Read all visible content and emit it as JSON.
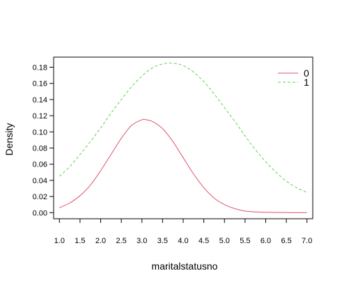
{
  "chart_data": {
    "type": "line",
    "title": "",
    "xlabel": "maritalstatusno",
    "ylabel": "Density",
    "xlim": [
      0.86,
      7.14
    ],
    "ylim": [
      -0.0075,
      0.1925
    ],
    "x_ticks": [
      "1.0",
      "1.5",
      "2.0",
      "2.5",
      "3.0",
      "3.5",
      "4.0",
      "4.5",
      "5.0",
      "5.5",
      "6.0",
      "6.5",
      "7.0"
    ],
    "y_ticks": [
      "0.00",
      "0.02",
      "0.04",
      "0.06",
      "0.08",
      "0.10",
      "0.12",
      "0.14",
      "0.16",
      "0.18"
    ],
    "grid": false,
    "legend_position": "top-right",
    "series": [
      {
        "name": "0",
        "color": "#DF536B",
        "dash": "solid",
        "x": [
          1.0,
          1.25,
          1.5,
          1.75,
          2.0,
          2.25,
          2.5,
          2.75,
          3.0,
          3.1,
          3.25,
          3.5,
          3.75,
          4.0,
          4.25,
          4.5,
          4.75,
          5.0,
          5.25,
          5.5,
          5.75,
          6.0,
          6.5,
          7.0
        ],
        "values": [
          0.006,
          0.012,
          0.021,
          0.034,
          0.052,
          0.072,
          0.092,
          0.108,
          0.115,
          0.115,
          0.113,
          0.104,
          0.088,
          0.068,
          0.048,
          0.031,
          0.018,
          0.01,
          0.005,
          0.002,
          0.001,
          0.0005,
          0.0001,
          0.0
        ]
      },
      {
        "name": "1",
        "color": "#61D04F",
        "dash": "dashed",
        "x": [
          1.0,
          1.25,
          1.5,
          1.75,
          2.0,
          2.25,
          2.5,
          2.75,
          3.0,
          3.25,
          3.5,
          3.75,
          4.0,
          4.25,
          4.5,
          4.75,
          5.0,
          5.25,
          5.5,
          5.75,
          6.0,
          6.25,
          6.5,
          6.75,
          7.0
        ],
        "values": [
          0.045,
          0.057,
          0.072,
          0.088,
          0.105,
          0.123,
          0.14,
          0.156,
          0.169,
          0.179,
          0.184,
          0.185,
          0.182,
          0.174,
          0.162,
          0.147,
          0.13,
          0.113,
          0.095,
          0.078,
          0.063,
          0.05,
          0.039,
          0.031,
          0.025
        ]
      }
    ]
  }
}
